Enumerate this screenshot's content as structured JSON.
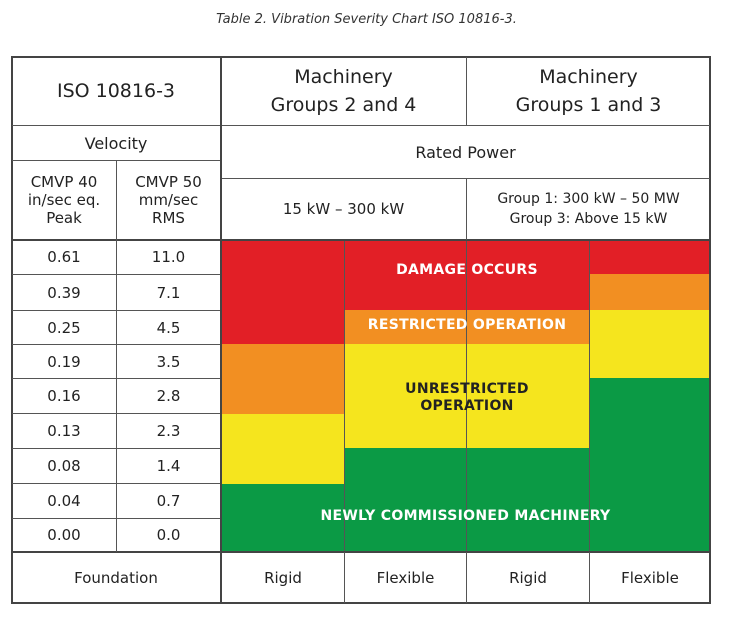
{
  "caption": "Table 2.  Vibration Severity Chart ISO 10816-3.",
  "header": {
    "standard": "ISO 10816-3",
    "groups_2_4": [
      "Machinery",
      "Groups 2 and 4"
    ],
    "groups_1_3": [
      "Machinery",
      "Groups 1 and 3"
    ],
    "velocity": "Velocity",
    "rated_power": "Rated Power",
    "col_in": [
      "CMVP 40",
      "in/sec eq.",
      "Peak"
    ],
    "col_mm": [
      "CMVP 50",
      "mm/sec",
      "RMS"
    ],
    "power_2_4": "15 kW – 300 kW",
    "power_1_3": [
      "Group 1:  300 kW – 50 MW",
      "Group 3:  Above 15 kW"
    ]
  },
  "rows": [
    {
      "in": "0.61",
      "mm": "11.0"
    },
    {
      "in": "0.39",
      "mm": "7.1"
    },
    {
      "in": "0.25",
      "mm": "4.5"
    },
    {
      "in": "0.19",
      "mm": "3.5"
    },
    {
      "in": "0.16",
      "mm": "2.8"
    },
    {
      "in": "0.13",
      "mm": "2.3"
    },
    {
      "in": "0.08",
      "mm": "1.4"
    },
    {
      "in": "0.04",
      "mm": "0.7"
    },
    {
      "in": "0.00",
      "mm": "0.0"
    }
  ],
  "zones": {
    "damage": "DAMAGE OCCURS",
    "restricted": "RESTRICTED OPERATION",
    "unrestricted": [
      "UNRESTRICTED",
      "OPERATION"
    ],
    "newly": "NEWLY COMMISSIONED MACHINERY",
    "colors": {
      "damage": "#e21f26",
      "restricted": "#f28f22",
      "unrestricted": "#f5e51e",
      "newly": "#0b9a45"
    }
  },
  "footer": {
    "foundation": "Foundation",
    "c1": "Rigid",
    "c2": "Flexible",
    "c3": "Rigid",
    "c4": "Flexible"
  }
}
